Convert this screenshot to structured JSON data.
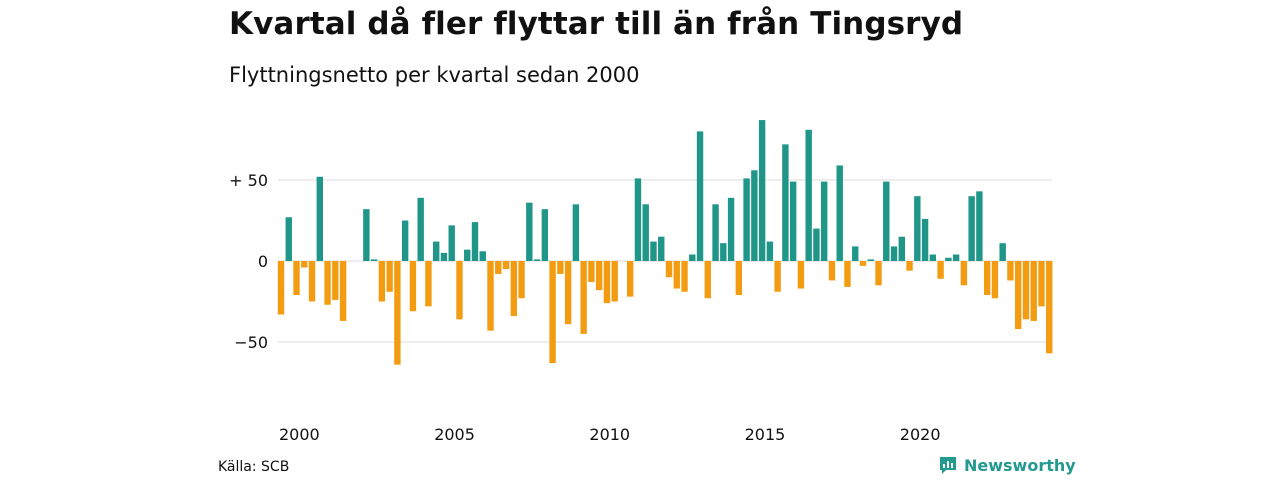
{
  "header": {
    "title": "Kvartal då fler flyttar till än från Tingsryd",
    "subtitle": "Flyttningsnetto per kvartal sedan 2000"
  },
  "footer": {
    "source": "Källa: SCB",
    "brand": "Newsworthy",
    "brand_icon": "newsworthy-logo-icon"
  },
  "colors": {
    "positive": "#1f9688",
    "negative": "#f39c12",
    "grid": "#dddddd",
    "brand": "#239a8f"
  },
  "chart_data": {
    "type": "bar",
    "title": "Kvartal då fler flyttar till än från Tingsryd",
    "subtitle": "Flyttningsnetto per kvartal sedan 2000",
    "xlabel": "",
    "ylabel": "",
    "x_start": "2000Q1",
    "x_ticks": [
      {
        "label": "2000",
        "quarter": 0
      },
      {
        "label": "2005",
        "quarter": 20
      },
      {
        "label": "2010",
        "quarter": 40
      },
      {
        "label": "2015",
        "quarter": 60
      },
      {
        "label": "2020",
        "quarter": 80
      }
    ],
    "y_ticks": [
      {
        "label": "+ 50",
        "value": 50
      },
      {
        "label": "0",
        "value": 0
      },
      {
        "label": "−50",
        "value": -50
      }
    ],
    "ylim": [
      -80,
      90
    ],
    "grid": true,
    "values": [
      -33,
      27,
      -21,
      -4,
      -25,
      52,
      -27,
      -24,
      -37,
      0,
      0,
      32,
      1,
      -25,
      -19,
      -64,
      25,
      -31,
      39,
      -28,
      12,
      5,
      22,
      -36,
      7,
      24,
      6,
      -43,
      -8,
      -5,
      -34,
      -23,
      36,
      1,
      32,
      -63,
      -8,
      -39,
      35,
      -45,
      -13,
      -18,
      -26,
      -25,
      0,
      -22,
      51,
      35,
      12,
      15,
      -10,
      -17,
      -19,
      4,
      80,
      -23,
      35,
      11,
      39,
      -21,
      51,
      56,
      87,
      12,
      -19,
      72,
      49,
      -17,
      81,
      20,
      49,
      -12,
      59,
      -16,
      9,
      -3,
      1,
      -15,
      49,
      9,
      15,
      -6,
      40,
      26,
      4,
      -11,
      2,
      4,
      -15,
      40,
      43,
      -21,
      -23,
      11,
      -12,
      -42,
      -36,
      -37,
      -28,
      -57
    ]
  }
}
